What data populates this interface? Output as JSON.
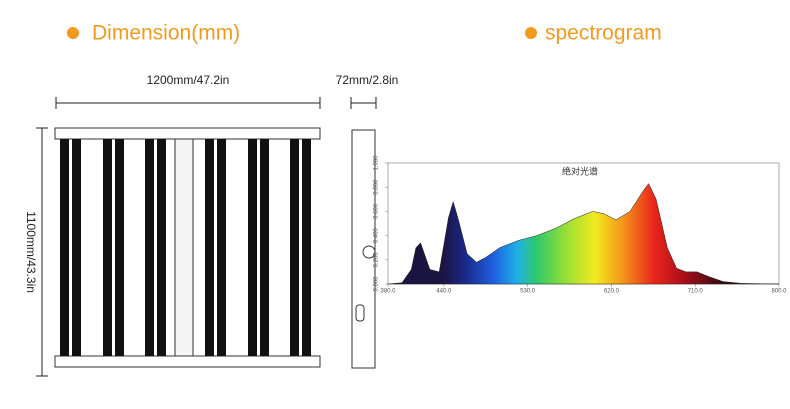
{
  "dimension": {
    "title": "Dimension(mm)",
    "width_label": "1200mm/47.2in",
    "depth_label": "72mm/2.8in",
    "height_label": "1100mm/43.3in"
  },
  "spectrogram_heading": "spectrogram",
  "chart_data": {
    "type": "area",
    "title": "绝对光谱",
    "x": [
      380,
      395,
      405,
      410,
      415,
      425,
      435,
      445,
      450,
      455,
      465,
      475,
      485,
      500,
      520,
      540,
      560,
      580,
      600,
      612,
      625,
      640,
      655,
      660,
      668,
      680,
      690,
      700,
      712,
      725,
      740,
      760,
      800
    ],
    "values": [
      0,
      0.01,
      0.12,
      0.3,
      0.34,
      0.12,
      0.1,
      0.55,
      0.68,
      0.55,
      0.25,
      0.18,
      0.22,
      0.3,
      0.36,
      0.4,
      0.46,
      0.54,
      0.6,
      0.58,
      0.53,
      0.6,
      0.78,
      0.83,
      0.7,
      0.3,
      0.13,
      0.1,
      0.1,
      0.06,
      0.02,
      0.005,
      0
    ],
    "xlim": [
      380,
      800
    ],
    "ylim": [
      0,
      1
    ],
    "xticks": [
      {
        "value": 380,
        "label": "380.0"
      },
      {
        "value": 440,
        "label": "440.0"
      },
      {
        "value": 530,
        "label": "530.0"
      },
      {
        "value": 620,
        "label": "620.0"
      },
      {
        "value": 710,
        "label": "710.0"
      },
      {
        "value": 800,
        "label": "800.0"
      }
    ],
    "yticks": [
      {
        "value": 0,
        "label": "0.000"
      },
      {
        "value": 0.2,
        "label": "0.200"
      },
      {
        "value": 0.4,
        "label": "0.400"
      },
      {
        "value": 0.6,
        "label": "0.600"
      },
      {
        "value": 0.8,
        "label": "0.800"
      },
      {
        "value": 1,
        "label": "1.000"
      }
    ]
  }
}
